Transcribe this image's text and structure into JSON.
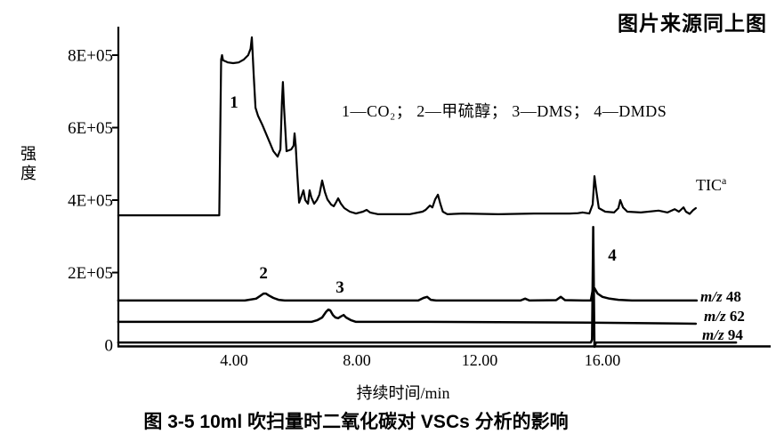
{
  "page": {
    "source_note": "图片来源同上图",
    "caption": "图 3-5  10ml 吹扫量时二氧化碳对 VSCs 分析的影响"
  },
  "chart_data": {
    "type": "line",
    "title": "图 3-5  10ml 吹扫量时二氧化碳对 VSCs 分析的影响",
    "xlabel": "持续时间/min",
    "ylabel": "强度",
    "legend_text": "1—CO₂；  2—甲硫醇；  3—DMS；  4—DMDS",
    "xlim": [
      0.2,
      21.5
    ],
    "ylim": [
      0,
      900000
    ],
    "grid": false,
    "background": "#ffffff",
    "ink_color": "#000000",
    "x_ticks": [
      {
        "value": 4,
        "label": "4.00"
      },
      {
        "value": 8,
        "label": "8.00"
      },
      {
        "value": 12,
        "label": "12.00"
      },
      {
        "value": 16,
        "label": "16.00"
      }
    ],
    "y_ticks": [
      {
        "value": 800000,
        "label": "8E+05"
      },
      {
        "value": 600000,
        "label": "6E+05"
      },
      {
        "value": 400000,
        "label": "4E+05"
      },
      {
        "value": 200000,
        "label": "2E+05"
      },
      {
        "value": 0,
        "label": "0"
      }
    ],
    "annotations": [
      {
        "label": "1",
        "compound": "CO₂",
        "x": 4.0,
        "y": 670000
      },
      {
        "label": "2",
        "compound": "甲硫醇",
        "x": 4.96,
        "y": 199000
      },
      {
        "label": "3",
        "compound": "DMS",
        "x": 7.45,
        "y": 160000
      },
      {
        "label": "4",
        "compound": "DMDS",
        "x": 16.32,
        "y": 248000
      }
    ],
    "series": [
      {
        "name": "TIC",
        "label_main": "TIC",
        "label_sup": "a",
        "points": [
          [
            0.23,
            358000
          ],
          [
            3.52,
            358000
          ],
          [
            3.56,
            650000
          ],
          [
            3.58,
            788000
          ],
          [
            3.61,
            800000
          ],
          [
            3.64,
            786000
          ],
          [
            3.8,
            780000
          ],
          [
            3.97,
            778000
          ],
          [
            4.15,
            780000
          ],
          [
            4.32,
            788000
          ],
          [
            4.46,
            800000
          ],
          [
            4.54,
            818000
          ],
          [
            4.58,
            849000
          ],
          [
            4.61,
            800000
          ],
          [
            4.64,
            745000
          ],
          [
            4.7,
            655000
          ],
          [
            4.78,
            633000
          ],
          [
            4.92,
            608000
          ],
          [
            5.1,
            572000
          ],
          [
            5.28,
            535000
          ],
          [
            5.42,
            520000
          ],
          [
            5.51,
            540000
          ],
          [
            5.56,
            670000
          ],
          [
            5.59,
            726000
          ],
          [
            5.63,
            655000
          ],
          [
            5.71,
            535000
          ],
          [
            5.86,
            540000
          ],
          [
            5.94,
            550000
          ],
          [
            5.97,
            584000
          ],
          [
            6.01,
            550000
          ],
          [
            6.06,
            470000
          ],
          [
            6.12,
            393000
          ],
          [
            6.2,
            412000
          ],
          [
            6.26,
            427000
          ],
          [
            6.32,
            400000
          ],
          [
            6.41,
            390000
          ],
          [
            6.46,
            427000
          ],
          [
            6.52,
            407000
          ],
          [
            6.61,
            390000
          ],
          [
            6.7,
            400000
          ],
          [
            6.78,
            415000
          ],
          [
            6.87,
            454000
          ],
          [
            6.96,
            422000
          ],
          [
            7.04,
            402000
          ],
          [
            7.16,
            388000
          ],
          [
            7.25,
            383000
          ],
          [
            7.33,
            395000
          ],
          [
            7.39,
            405000
          ],
          [
            7.48,
            390000
          ],
          [
            7.59,
            378000
          ],
          [
            7.77,
            368000
          ],
          [
            7.97,
            363000
          ],
          [
            8.2,
            368000
          ],
          [
            8.32,
            373000
          ],
          [
            8.43,
            366000
          ],
          [
            8.7,
            361000
          ],
          [
            9.71,
            361000
          ],
          [
            10.14,
            368000
          ],
          [
            10.24,
            373000
          ],
          [
            10.38,
            385000
          ],
          [
            10.46,
            380000
          ],
          [
            10.55,
            402000
          ],
          [
            10.64,
            415000
          ],
          [
            10.72,
            390000
          ],
          [
            10.8,
            368000
          ],
          [
            10.95,
            361000
          ],
          [
            11.45,
            363000
          ],
          [
            12.61,
            361000
          ],
          [
            13.77,
            363000
          ],
          [
            14.93,
            363000
          ],
          [
            15.2,
            364000
          ],
          [
            15.36,
            366000
          ],
          [
            15.57,
            363000
          ],
          [
            15.68,
            388000
          ],
          [
            15.74,
            466000
          ],
          [
            15.8,
            425000
          ],
          [
            15.88,
            378000
          ],
          [
            16.09,
            368000
          ],
          [
            16.38,
            366000
          ],
          [
            16.52,
            378000
          ],
          [
            16.58,
            400000
          ],
          [
            16.67,
            380000
          ],
          [
            16.81,
            368000
          ],
          [
            17.25,
            366000
          ],
          [
            17.83,
            371000
          ],
          [
            18.12,
            366000
          ],
          [
            18.35,
            375000
          ],
          [
            18.49,
            368000
          ],
          [
            18.64,
            380000
          ],
          [
            18.72,
            368000
          ],
          [
            18.84,
            362000
          ],
          [
            18.95,
            372000
          ],
          [
            19.04,
            378000
          ]
        ]
      },
      {
        "name": "m/z 48",
        "label_prefix": "m/z",
        "label_value": " 48",
        "points": [
          [
            0.23,
            123000
          ],
          [
            4.35,
            123000
          ],
          [
            4.72,
            128000
          ],
          [
            4.84,
            135000
          ],
          [
            4.96,
            142000
          ],
          [
            5.04,
            142000
          ],
          [
            5.13,
            137000
          ],
          [
            5.28,
            130000
          ],
          [
            5.45,
            125000
          ],
          [
            5.65,
            123000
          ],
          [
            10.0,
            123000
          ],
          [
            10.17,
            130000
          ],
          [
            10.29,
            133000
          ],
          [
            10.41,
            125000
          ],
          [
            10.58,
            123000
          ],
          [
            13.33,
            123000
          ],
          [
            13.48,
            128000
          ],
          [
            13.62,
            123000
          ],
          [
            14.49,
            124000
          ],
          [
            14.64,
            133000
          ],
          [
            14.78,
            124000
          ],
          [
            15.36,
            123000
          ],
          [
            15.62,
            123000
          ],
          [
            15.68,
            152000
          ],
          [
            15.74,
            157000
          ],
          [
            15.84,
            142000
          ],
          [
            16.0,
            133000
          ],
          [
            16.23,
            128000
          ],
          [
            16.52,
            125000
          ],
          [
            16.96,
            123000
          ],
          [
            19.07,
            123000
          ]
        ]
      },
      {
        "name": "m/z 62",
        "label_prefix": "m/z",
        "label_value": " 62",
        "points": [
          [
            0.23,
            64000
          ],
          [
            6.52,
            64000
          ],
          [
            6.72,
            69000
          ],
          [
            6.87,
            76000
          ],
          [
            6.99,
            91000
          ],
          [
            7.07,
            98000
          ],
          [
            7.13,
            96000
          ],
          [
            7.22,
            83000
          ],
          [
            7.3,
            76000
          ],
          [
            7.39,
            74000
          ],
          [
            7.48,
            79000
          ],
          [
            7.57,
            83000
          ],
          [
            7.65,
            76000
          ],
          [
            7.8,
            69000
          ],
          [
            7.97,
            64000
          ],
          [
            10.29,
            64000
          ],
          [
            15.51,
            62000
          ],
          [
            19.04,
            59000
          ]
        ]
      },
      {
        "name": "m/z 94",
        "label_prefix": "m/z",
        "label_value": " 94",
        "points": [
          [
            0.23,
            7000
          ],
          [
            15.51,
            7000
          ],
          [
            15.62,
            7000
          ],
          [
            15.66,
            15000
          ],
          [
            15.7,
            326000
          ],
          [
            15.74,
            -5000
          ],
          [
            15.79,
            7000
          ],
          [
            20.35,
            7000
          ]
        ]
      }
    ]
  }
}
